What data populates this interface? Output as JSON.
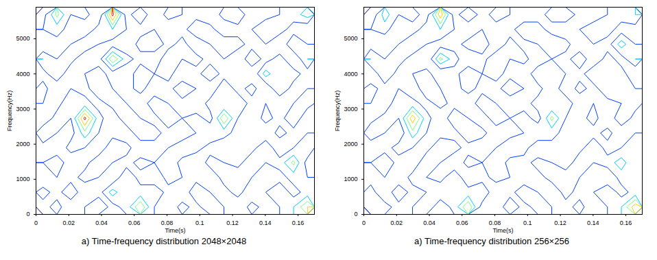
{
  "chart_data": [
    {
      "type": "contour",
      "title": "a) Time-frequency distribution 2048×2048",
      "xlabel": "Time(s)",
      "ylabel": "Frequency(Hz)",
      "xlim": [
        0,
        0.17
      ],
      "ylim": [
        0,
        5900
      ],
      "xticks": [
        0,
        0.02,
        0.04,
        0.06,
        0.08,
        0.1,
        0.12,
        0.14,
        0.16
      ],
      "yticks": [
        0,
        1000,
        2000,
        3000,
        4000,
        5000
      ],
      "levels": [
        1,
        3,
        5,
        6.5,
        8,
        9.5
      ],
      "colors": [
        "#00008f",
        "#0040ff",
        "#00d0ff",
        "#80ff80",
        "#ffd000",
        "#ff2000"
      ],
      "values": [
        [
          2,
          4,
          1,
          3,
          5,
          2,
          4,
          8,
          3,
          1,
          4,
          2,
          5,
          3,
          1,
          4,
          2,
          3,
          5,
          8
        ],
        [
          4,
          2,
          5,
          1,
          2,
          6,
          3,
          4,
          5,
          2,
          1,
          5,
          3,
          2,
          4,
          1,
          3,
          5,
          2,
          4
        ],
        [
          1,
          3,
          2,
          4,
          3,
          1,
          5,
          2,
          1,
          4,
          3,
          2,
          1,
          4,
          5,
          3,
          1,
          2,
          4,
          3
        ],
        [
          3,
          5,
          1,
          2,
          5,
          3,
          2,
          4,
          3,
          5,
          2,
          1,
          4,
          3,
          2,
          5,
          3,
          4,
          7,
          2
        ],
        [
          2,
          1,
          4,
          3,
          1,
          5,
          4,
          1,
          2,
          3,
          5,
          4,
          2,
          1,
          3,
          2,
          5,
          1,
          3,
          5
        ],
        [
          5,
          3,
          2,
          6,
          3,
          2,
          1,
          5,
          4,
          2,
          1,
          3,
          5,
          4,
          2,
          3,
          1,
          4,
          2,
          3
        ],
        [
          1,
          4,
          3,
          10,
          4,
          1,
          5,
          3,
          2,
          5,
          3,
          4,
          2,
          8,
          3,
          1,
          4,
          2,
          5,
          1
        ],
        [
          3,
          2,
          5,
          4,
          2,
          4,
          3,
          1,
          5,
          3,
          2,
          1,
          4,
          3,
          5,
          2,
          3,
          1,
          3,
          4
        ],
        [
          4,
          1,
          3,
          2,
          5,
          3,
          2,
          4,
          1,
          2,
          5,
          3,
          1,
          5,
          2,
          4,
          1,
          5,
          2,
          3
        ],
        [
          2,
          5,
          1,
          3,
          4,
          2,
          1,
          5,
          3,
          4,
          1,
          2,
          5,
          2,
          3,
          1,
          6,
          3,
          4,
          2
        ],
        [
          5,
          3,
          4,
          1,
          2,
          8,
          4,
          2,
          1,
          5,
          3,
          4,
          2,
          3,
          1,
          5,
          2,
          4,
          1,
          5
        ],
        [
          1,
          2,
          3,
          5,
          3,
          2,
          1,
          4,
          5,
          2,
          4,
          1,
          3,
          5,
          4,
          2,
          3,
          1,
          5,
          3
        ],
        [
          3,
          4,
          2,
          1,
          4,
          5,
          3,
          2,
          3,
          1,
          2,
          5,
          4,
          1,
          2,
          3,
          5,
          4,
          2,
          1
        ],
        [
          2,
          7,
          3,
          4,
          1,
          10,
          2,
          5,
          1,
          4,
          3,
          2,
          1,
          4,
          5,
          1,
          2,
          3,
          4,
          6
        ]
      ]
    },
    {
      "type": "contour",
      "title": "a) Time-frequency distribution 256×256",
      "xlabel": "Time(s)",
      "ylabel": "Frequency(Hz)",
      "xlim": [
        0,
        0.17
      ],
      "ylim": [
        0,
        5900
      ],
      "xticks": [
        0,
        0.02,
        0.04,
        0.06,
        0.08,
        0.1,
        0.12,
        0.14,
        0.16
      ],
      "yticks": [
        0,
        1000,
        2000,
        3000,
        4000,
        5000
      ],
      "levels": [
        1,
        3,
        5,
        6.5,
        8,
        9.5
      ],
      "colors": [
        "#00008f",
        "#0040ff",
        "#00d0ff",
        "#80ff80",
        "#ffd000",
        "#ff2000"
      ],
      "values": [
        [
          3,
          4,
          2,
          3,
          5,
          1,
          4,
          8,
          2,
          1,
          5,
          2,
          4,
          3,
          2,
          4,
          1,
          3,
          5,
          9
        ],
        [
          4,
          1,
          5,
          2,
          3,
          5,
          3,
          4,
          5,
          1,
          2,
          5,
          3,
          1,
          4,
          2,
          3,
          5,
          2,
          4
        ],
        [
          2,
          3,
          1,
          4,
          3,
          2,
          5,
          1,
          2,
          4,
          3,
          1,
          2,
          4,
          5,
          3,
          2,
          1,
          4,
          3
        ],
        [
          3,
          5,
          2,
          1,
          5,
          3,
          1,
          4,
          3,
          5,
          2,
          2,
          4,
          3,
          1,
          5,
          3,
          4,
          6,
          3
        ],
        [
          1,
          2,
          4,
          3,
          2,
          5,
          4,
          2,
          1,
          3,
          5,
          4,
          1,
          2,
          3,
          2,
          5,
          2,
          3,
          5
        ],
        [
          5,
          3,
          1,
          6,
          3,
          2,
          2,
          5,
          4,
          1,
          2,
          3,
          5,
          4,
          2,
          3,
          2,
          4,
          1,
          3
        ],
        [
          2,
          4,
          3,
          9,
          4,
          1,
          5,
          3,
          1,
          5,
          3,
          4,
          2,
          7,
          3,
          2,
          4,
          1,
          5,
          2
        ],
        [
          3,
          1,
          5,
          4,
          2,
          4,
          2,
          1,
          5,
          3,
          1,
          2,
          4,
          3,
          5,
          1,
          3,
          2,
          3,
          4
        ],
        [
          4,
          2,
          3,
          1,
          5,
          3,
          2,
          4,
          2,
          2,
          5,
          3,
          2,
          5,
          1,
          4,
          2,
          5,
          3,
          3
        ],
        [
          1,
          5,
          2,
          3,
          4,
          1,
          2,
          5,
          3,
          4,
          2,
          1,
          5,
          3,
          3,
          2,
          5,
          3,
          4,
          1
        ],
        [
          5,
          3,
          4,
          2,
          1,
          7,
          4,
          1,
          2,
          5,
          3,
          4,
          1,
          3,
          2,
          5,
          1,
          4,
          2,
          5
        ],
        [
          2,
          1,
          3,
          5,
          3,
          2,
          2,
          4,
          5,
          1,
          4,
          2,
          3,
          5,
          4,
          1,
          3,
          2,
          6,
          3
        ],
        [
          3,
          4,
          1,
          2,
          4,
          5,
          3,
          1,
          3,
          2,
          2,
          5,
          4,
          2,
          1,
          3,
          5,
          4,
          2,
          2
        ],
        [
          1,
          6,
          3,
          4,
          2,
          9,
          2,
          5,
          2,
          4,
          3,
          1,
          2,
          4,
          5,
          2,
          1,
          3,
          4,
          5
        ]
      ]
    }
  ]
}
